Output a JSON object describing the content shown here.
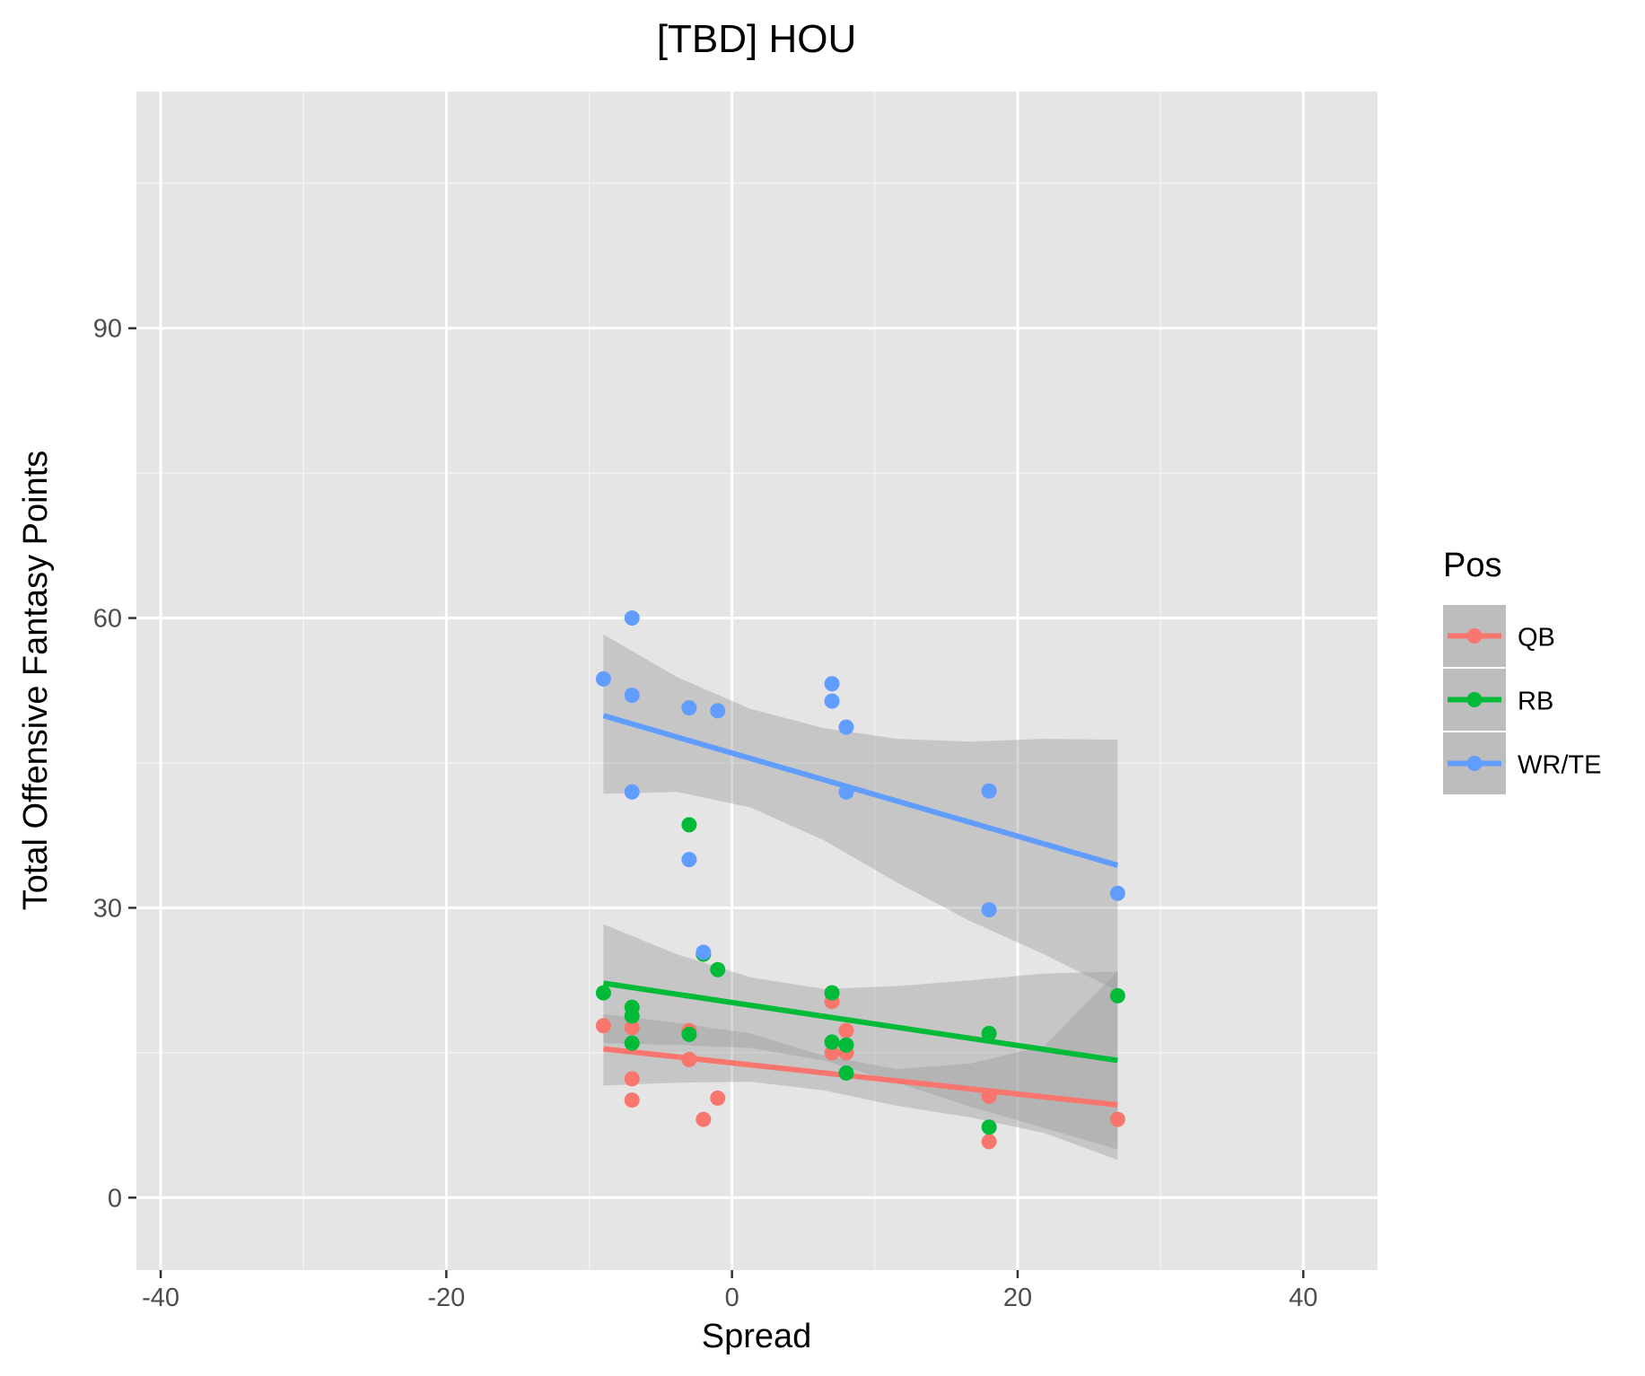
{
  "chart_data": {
    "type": "scatter",
    "title": "[TBD] HOU",
    "xlabel": "Spread",
    "ylabel": "Total Offensive Fantasy Points",
    "xlim": [
      -41.7,
      45.2
    ],
    "ylim": [
      -7.5,
      114.5
    ],
    "x_ticks": [
      -40,
      -20,
      0,
      20,
      40
    ],
    "x_tick_labels": [
      "-40",
      "-20",
      "0",
      "20",
      "40"
    ],
    "y_ticks": [
      0,
      30,
      60,
      90
    ],
    "y_tick_labels": [
      "0",
      "30",
      "60",
      "90"
    ],
    "grid": true,
    "legend": {
      "title": "Pos",
      "position": "right"
    },
    "series": [
      {
        "name": "QB",
        "color": "#F8766D",
        "points": [
          [
            -9,
            17.8
          ],
          [
            -7,
            17.6
          ],
          [
            -7,
            12.3
          ],
          [
            -7,
            10.1
          ],
          [
            -3,
            17.3
          ],
          [
            -3,
            14.3
          ],
          [
            -2,
            8.1
          ],
          [
            -1,
            10.3
          ],
          [
            7,
            20.3
          ],
          [
            7,
            15.0
          ],
          [
            8,
            17.3
          ],
          [
            8,
            15.0
          ],
          [
            18,
            10.5
          ],
          [
            18,
            5.8
          ],
          [
            27,
            8.1
          ]
        ],
        "fit": {
          "x": [
            -9,
            27
          ],
          "y": [
            15.4,
            9.6
          ]
        },
        "ci_upper": [
          19.0,
          18.1,
          17.0,
          14.7,
          13.3,
          13.9,
          15.7,
          23.4
        ],
        "ci_lower": [
          11.6,
          11.9,
          12.0,
          11.1,
          9.5,
          8.3,
          6.7,
          3.9
        ]
      },
      {
        "name": "RB",
        "color": "#00BA38",
        "points": [
          [
            -9,
            21.2
          ],
          [
            -7,
            19.7
          ],
          [
            -7,
            18.8
          ],
          [
            -7,
            16.0
          ],
          [
            -3,
            38.6
          ],
          [
            -3,
            16.9
          ],
          [
            -2,
            25.2
          ],
          [
            -1,
            23.6
          ],
          [
            7,
            21.2
          ],
          [
            7,
            16.1
          ],
          [
            8,
            15.8
          ],
          [
            8,
            12.9
          ],
          [
            18,
            17.0
          ],
          [
            18,
            7.3
          ],
          [
            27,
            20.9
          ]
        ],
        "fit": {
          "x": [
            -9,
            27
          ],
          "y": [
            22.2,
            14.2
          ]
        },
        "ci_upper": [
          28.3,
          25.2,
          22.8,
          21.6,
          21.9,
          22.5,
          23.2,
          23.4
        ],
        "ci_lower": [
          16.0,
          15.8,
          15.5,
          14.2,
          11.9,
          9.4,
          7.2,
          5.0
        ]
      },
      {
        "name": "WR/TE",
        "color": "#619CFF",
        "points": [
          [
            -9,
            53.7
          ],
          [
            -7,
            60.0
          ],
          [
            -7,
            52.0
          ],
          [
            -7,
            42.0
          ],
          [
            -3,
            50.7
          ],
          [
            -3,
            35.0
          ],
          [
            -2,
            25.4
          ],
          [
            -1,
            50.4
          ],
          [
            7,
            53.2
          ],
          [
            7,
            51.4
          ],
          [
            8,
            48.7
          ],
          [
            8,
            42.0
          ],
          [
            18,
            42.1
          ],
          [
            18,
            29.8
          ],
          [
            27,
            31.5
          ]
        ],
        "fit": {
          "x": [
            -9,
            27
          ],
          "y": [
            49.9,
            34.4
          ]
        },
        "ci_upper": [
          58.3,
          53.9,
          50.6,
          48.6,
          47.5,
          47.2,
          47.5,
          47.4
        ],
        "ci_lower": [
          41.8,
          42.0,
          40.4,
          37.0,
          32.6,
          28.6,
          25.2,
          21.4
        ]
      }
    ]
  }
}
